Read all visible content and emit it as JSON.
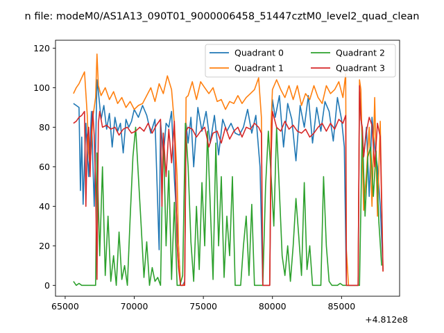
{
  "chart_data": {
    "type": "line",
    "title": "n file: modeM0/AS1A13_090T01_9000006458_51447cztM0_level2_quad_clean",
    "xlabel": "",
    "ylabel": "",
    "x_offset_label": "+4.812e8",
    "xlim": [
      64300,
      89200
    ],
    "ylim": [
      -5.5,
      124
    ],
    "xticks": [
      65000,
      70000,
      75000,
      80000,
      85000
    ],
    "xtick_labels": [
      "65000",
      "70000",
      "75000",
      "80000",
      "85000"
    ],
    "yticks": [
      0,
      20,
      40,
      60,
      80,
      100,
      120
    ],
    "ytick_labels": [
      "0",
      "20",
      "40",
      "60",
      "80",
      "100",
      "120"
    ],
    "grid": false,
    "legend": {
      "placement": "top-right",
      "columns": 2
    },
    "series": [
      {
        "name": "Quadrant 0",
        "color": "#1f77b4",
        "x": [
          65600,
          65800,
          66000,
          66100,
          66200,
          66300,
          66500,
          66700,
          66900,
          67000,
          67100,
          67200,
          67300,
          67400,
          67600,
          67800,
          68000,
          68200,
          68400,
          68600,
          68800,
          69000,
          69200,
          69400,
          69600,
          69800,
          70000,
          70300,
          70600,
          70900,
          71200,
          71500,
          71800,
          71900,
          72100,
          72300,
          72500,
          72700,
          72900,
          73100,
          73200,
          73350,
          73500,
          73650,
          73750,
          73900,
          74100,
          74300,
          74600,
          74900,
          75200,
          75500,
          75800,
          76100,
          76400,
          76700,
          77000,
          77300,
          77600,
          77900,
          78200,
          78500,
          78800,
          79100,
          79300,
          79450,
          79600,
          79800,
          79900,
          80000,
          80200,
          80500,
          80800,
          81100,
          81400,
          81700,
          82000,
          82300,
          82600,
          82900,
          83200,
          83500,
          83800,
          84100,
          84400,
          84700,
          85000,
          85200,
          85350,
          85500,
          85700,
          85900,
          86100,
          86200,
          86300,
          86400,
          86600,
          86800,
          87000,
          87200,
          87400,
          87600,
          87800,
          88000
        ],
        "values": [
          92,
          91,
          90,
          48,
          75,
          41,
          82,
          55,
          88,
          63,
          40,
          70,
          104,
          98,
          84,
          91,
          79,
          87,
          70,
          85,
          78,
          82,
          67,
          84,
          80,
          83,
          89,
          85,
          91,
          86,
          77,
          84,
          18,
          83,
          65,
          82,
          80,
          88,
          54,
          30,
          20,
          0,
          0,
          2,
          82,
          72,
          85,
          60,
          90,
          78,
          88,
          72,
          86,
          66,
          84,
          78,
          82,
          77,
          76,
          80,
          89,
          77,
          86,
          60,
          0,
          0,
          0,
          0,
          72,
          94,
          85,
          96,
          70,
          92,
          84,
          63,
          91,
          80,
          96,
          72,
          90,
          78,
          93,
          88,
          73,
          95,
          84,
          70,
          0,
          0,
          0,
          0,
          0,
          0,
          98,
          86,
          65,
          80,
          45,
          85,
          70,
          60,
          40,
          8
        ]
      },
      {
        "name": "Quadrant 1",
        "color": "#ff7f0e",
        "x": [
          65600,
          65800,
          66000,
          66200,
          66400,
          66600,
          66700,
          66800,
          66900,
          67000,
          67100,
          67200,
          67300,
          67400,
          67600,
          67900,
          68200,
          68500,
          68800,
          69100,
          69400,
          69700,
          70000,
          70300,
          70600,
          70900,
          71200,
          71500,
          71800,
          72100,
          72400,
          72700,
          72900,
          73100,
          73200,
          73350,
          73500,
          73650,
          73750,
          73900,
          74200,
          74500,
          74800,
          75100,
          75400,
          75700,
          76000,
          76300,
          76600,
          76900,
          77200,
          77500,
          77800,
          78100,
          78400,
          78700,
          79000,
          79200,
          79300,
          79450,
          79600,
          79800,
          79900,
          80000,
          80300,
          80600,
          80900,
          81200,
          81500,
          81800,
          82100,
          82400,
          82700,
          83000,
          83300,
          83600,
          83900,
          84200,
          84500,
          84800,
          85100,
          85300,
          85350,
          85500,
          85700,
          85900,
          86100,
          86200,
          86300,
          86400,
          86600,
          86800,
          87000,
          87200,
          87400,
          87600,
          87800,
          88000
        ],
        "values": [
          97,
          100,
          102,
          105,
          108,
          86,
          67,
          60,
          72,
          85,
          90,
          95,
          117,
          101,
          96,
          100,
          94,
          98,
          92,
          95,
          90,
          93,
          89,
          91,
          92,
          96,
          100,
          93,
          102,
          97,
          106,
          99,
          82,
          55,
          20,
          0,
          0,
          1,
          95,
          96,
          103,
          94,
          103,
          100,
          97,
          100,
          93,
          94,
          89,
          93,
          92,
          96,
          92,
          95,
          97,
          99,
          105,
          85,
          0,
          0,
          0,
          0,
          81,
          99,
          104,
          99,
          95,
          101,
          94,
          101,
          91,
          97,
          94,
          101,
          95,
          92,
          101,
          97,
          99,
          103,
          95,
          107,
          18,
          0,
          0,
          0,
          0,
          0,
          104,
          99,
          38,
          57,
          80,
          40,
          95,
          35,
          83,
          7
        ]
      },
      {
        "name": "Quadrant 2",
        "color": "#2ca02c",
        "x": [
          65600,
          65800,
          66000,
          66200,
          66400,
          66600,
          66800,
          67000,
          67200,
          67300,
          67500,
          67700,
          67900,
          68100,
          68300,
          68500,
          68700,
          68900,
          69100,
          69300,
          69500,
          69700,
          69900,
          70100,
          70300,
          70500,
          70700,
          70900,
          71100,
          71300,
          71500,
          71700,
          71900,
          72100,
          72300,
          72500,
          72700,
          72900,
          73100,
          73300,
          73500,
          73700,
          73900,
          74100,
          74300,
          74500,
          74700,
          74900,
          75100,
          75300,
          75500,
          75700,
          75900,
          76100,
          76300,
          76500,
          76700,
          76900,
          77100,
          77300,
          77500,
          77700,
          77900,
          78100,
          78300,
          78500,
          78700,
          78900,
          79100,
          79300,
          79500,
          79700,
          79900,
          80100,
          80300,
          80500,
          80700,
          80900,
          81100,
          81300,
          81500,
          81700,
          81900,
          82100,
          82300,
          82500,
          82700,
          82900,
          83100,
          83300,
          83500,
          83700,
          83900,
          84100,
          84300,
          84500,
          84700,
          84900,
          85100,
          85300,
          85500,
          85700,
          85900,
          86100,
          86300,
          86500,
          86700,
          86900,
          87100,
          87300,
          87500,
          87700,
          87900
        ],
        "values": [
          2,
          0,
          1,
          0,
          0,
          0,
          0,
          0,
          0,
          67,
          15,
          60,
          5,
          35,
          2,
          15,
          0,
          27,
          3,
          10,
          0,
          34,
          65,
          80,
          55,
          30,
          4,
          22,
          0,
          9,
          2,
          4,
          0,
          77,
          20,
          58,
          3,
          42,
          0,
          0,
          5,
          82,
          60,
          22,
          2,
          40,
          8,
          52,
          20,
          78,
          40,
          3,
          72,
          20,
          55,
          4,
          35,
          15,
          55,
          0,
          0,
          0,
          20,
          35,
          5,
          41,
          0,
          0,
          0,
          0,
          50,
          78,
          56,
          30,
          80,
          48,
          15,
          5,
          20,
          2,
          20,
          44,
          25,
          5,
          52,
          8,
          20,
          0,
          0,
          0,
          0,
          55,
          20,
          2,
          0,
          0,
          0,
          1,
          0,
          0,
          0,
          0,
          0,
          0,
          0,
          80,
          35,
          65,
          70,
          45,
          68,
          32,
          10
        ]
      },
      {
        "name": "Quadrant 3",
        "color": "#d62728",
        "x": [
          65600,
          65800,
          66000,
          66200,
          66400,
          66500,
          66600,
          66700,
          66800,
          66900,
          67000,
          67100,
          67200,
          67300,
          67400,
          67500,
          67700,
          68000,
          68300,
          68600,
          68900,
          69200,
          69500,
          69800,
          70100,
          70400,
          70700,
          71000,
          71300,
          71600,
          71900,
          72000,
          72100,
          72300,
          72500,
          72700,
          72900,
          73100,
          73200,
          73350,
          73500,
          73650,
          73750,
          73900,
          74200,
          74500,
          74800,
          75100,
          75400,
          75700,
          76000,
          76300,
          76600,
          76900,
          77200,
          77500,
          77800,
          78100,
          78400,
          78700,
          79000,
          79200,
          79300,
          79450,
          79600,
          79800,
          79900,
          80000,
          80300,
          80600,
          80900,
          81200,
          81500,
          81800,
          82100,
          82400,
          82700,
          83000,
          83300,
          83600,
          83900,
          84200,
          84500,
          84800,
          85100,
          85300,
          85350,
          85500,
          85700,
          85900,
          86100,
          86200,
          86300,
          86400,
          86500,
          86600,
          86800,
          87000,
          87200,
          87400,
          87600,
          87800,
          88000
        ],
        "values": [
          82,
          83,
          85,
          86,
          88,
          40,
          75,
          80,
          55,
          78,
          88,
          76,
          50,
          3,
          82,
          88,
          80,
          81,
          79,
          80,
          76,
          79,
          80,
          77,
          78,
          80,
          78,
          82,
          77,
          81,
          84,
          40,
          77,
          55,
          79,
          62,
          83,
          20,
          9,
          0,
          0,
          0,
          78,
          80,
          79,
          75,
          78,
          80,
          70,
          77,
          78,
          72,
          80,
          74,
          78,
          80,
          75,
          80,
          79,
          82,
          80,
          77,
          0,
          0,
          0,
          0,
          63,
          88,
          80,
          78,
          83,
          79,
          81,
          78,
          77,
          79,
          75,
          77,
          80,
          82,
          78,
          82,
          79,
          84,
          82,
          86,
          0,
          0,
          0,
          0,
          0,
          0,
          101,
          84,
          80,
          65,
          78,
          85,
          81,
          60,
          82,
          75,
          7
        ]
      }
    ]
  }
}
